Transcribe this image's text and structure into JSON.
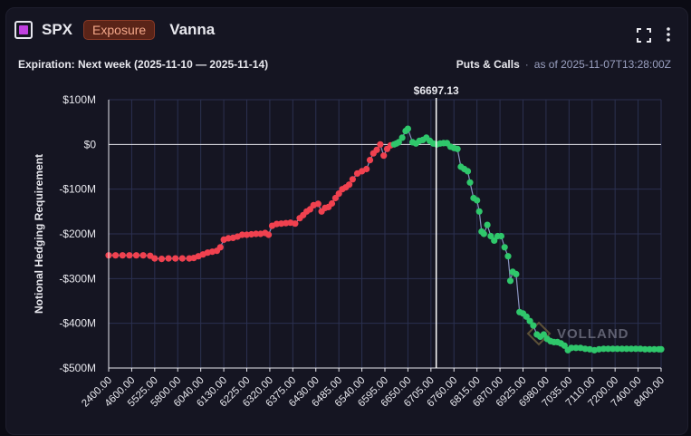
{
  "header": {
    "ticker": "SPX",
    "badge": "Exposure",
    "greek": "Vanna",
    "icon_color": "#c040e0"
  },
  "subheader": {
    "expiration": "Expiration: Next week (2025-11-10 — 2025-11-14)",
    "mode": "Puts & Calls",
    "separator": "·",
    "as_of": "as of 2025-11-07T13:28:00Z"
  },
  "watermark": "VOLLAND",
  "chart_data": {
    "type": "scatter",
    "ylabel": "Notional Hedging Requirement",
    "xlabel": "",
    "spot_label": "$6697.13",
    "y_ticks": [
      100,
      0,
      -100,
      -200,
      -300,
      -400,
      -500
    ],
    "y_tick_labels": [
      "$100M",
      "$0",
      "-$100M",
      "-$200M",
      "-$300M",
      "-$400M",
      "-$500M"
    ],
    "ylim": [
      -500,
      100
    ],
    "x_tick_labels": [
      "2400.00",
      "4600.00",
      "5525.00",
      "5800.00",
      "6040.00",
      "6130.00",
      "6225.00",
      "6320.00",
      "6375.00",
      "6430.00",
      "6485.00",
      "6540.00",
      "6595.00",
      "6650.00",
      "6705.00",
      "6760.00",
      "6815.00",
      "6870.00",
      "6925.00",
      "6980.00",
      "7035.00",
      "7110.00",
      "7200.00",
      "7400.00",
      "8400.00"
    ],
    "colors": {
      "negative": "#f0414f",
      "positive": "#2fc76b",
      "line": "#8a93c0",
      "grid": "#2b3050",
      "zero": "#e8e8ee",
      "spot": "#ffffff"
    },
    "points": [
      [
        0,
        -248
      ],
      [
        0.3,
        -248
      ],
      [
        0.6,
        -248
      ],
      [
        0.9,
        -248
      ],
      [
        1.2,
        -248
      ],
      [
        1.5,
        -248
      ],
      [
        1.8,
        -249
      ],
      [
        2.0,
        -255
      ],
      [
        2.3,
        -256
      ],
      [
        2.6,
        -255
      ],
      [
        2.9,
        -255
      ],
      [
        3.2,
        -255
      ],
      [
        3.5,
        -255
      ],
      [
        3.7,
        -254
      ],
      [
        3.9,
        -250
      ],
      [
        4.1,
        -246
      ],
      [
        4.3,
        -242
      ],
      [
        4.5,
        -240
      ],
      [
        4.7,
        -238
      ],
      [
        4.85,
        -230
      ],
      [
        5.0,
        -213
      ],
      [
        5.2,
        -210
      ],
      [
        5.4,
        -209
      ],
      [
        5.6,
        -206
      ],
      [
        5.8,
        -202
      ],
      [
        6.0,
        -202
      ],
      [
        6.2,
        -201
      ],
      [
        6.4,
        -200
      ],
      [
        6.6,
        -200
      ],
      [
        6.8,
        -198
      ],
      [
        6.95,
        -202
      ],
      [
        7.1,
        -182
      ],
      [
        7.3,
        -178
      ],
      [
        7.5,
        -177
      ],
      [
        7.7,
        -176
      ],
      [
        7.9,
        -175
      ],
      [
        8.1,
        -177
      ],
      [
        8.3,
        -165
      ],
      [
        8.45,
        -158
      ],
      [
        8.6,
        -150
      ],
      [
        8.75,
        -145
      ],
      [
        8.9,
        -136
      ],
      [
        9.1,
        -133
      ],
      [
        9.25,
        -150
      ],
      [
        9.4,
        -142
      ],
      [
        9.55,
        -140
      ],
      [
        9.7,
        -132
      ],
      [
        9.85,
        -120
      ],
      [
        10.0,
        -110
      ],
      [
        10.15,
        -100
      ],
      [
        10.3,
        -96
      ],
      [
        10.45,
        -90
      ],
      [
        10.6,
        -78
      ],
      [
        10.8,
        -65
      ],
      [
        11.0,
        -60
      ],
      [
        11.2,
        -55
      ],
      [
        11.35,
        -35
      ],
      [
        11.5,
        -20
      ],
      [
        11.65,
        -12
      ],
      [
        11.8,
        0
      ],
      [
        11.95,
        -25
      ],
      [
        12.1,
        -10
      ],
      [
        12.25,
        -2
      ],
      [
        12.4,
        0
      ],
      [
        12.5,
        2
      ],
      [
        12.6,
        5
      ],
      [
        12.75,
        15
      ],
      [
        12.9,
        30
      ],
      [
        13.0,
        35
      ],
      [
        13.2,
        5
      ],
      [
        13.35,
        2
      ],
      [
        13.5,
        8
      ],
      [
        13.65,
        10
      ],
      [
        13.8,
        15
      ],
      [
        13.95,
        8
      ],
      [
        14.1,
        2
      ],
      [
        14.25,
        0
      ],
      [
        14.4,
        2
      ],
      [
        14.55,
        3
      ],
      [
        14.7,
        3
      ],
      [
        14.85,
        -5
      ],
      [
        15.0,
        -8
      ],
      [
        15.15,
        -10
      ],
      [
        15.3,
        -50
      ],
      [
        15.45,
        -55
      ],
      [
        15.6,
        -60
      ],
      [
        15.7,
        -85
      ],
      [
        15.85,
        -120
      ],
      [
        16.0,
        -125
      ],
      [
        16.1,
        -150
      ],
      [
        16.2,
        -195
      ],
      [
        16.3,
        -200
      ],
      [
        16.45,
        -180
      ],
      [
        16.6,
        -205
      ],
      [
        16.75,
        -215
      ],
      [
        16.9,
        -205
      ],
      [
        17.05,
        -205
      ],
      [
        17.2,
        -230
      ],
      [
        17.35,
        -250
      ],
      [
        17.45,
        -305
      ],
      [
        17.55,
        -285
      ],
      [
        17.7,
        -290
      ],
      [
        17.85,
        -375
      ],
      [
        18.0,
        -378
      ],
      [
        18.15,
        -385
      ],
      [
        18.3,
        -395
      ],
      [
        18.45,
        -405
      ],
      [
        18.6,
        -425
      ],
      [
        18.75,
        -430
      ],
      [
        18.9,
        -425
      ],
      [
        19.05,
        -435
      ],
      [
        19.2,
        -440
      ],
      [
        19.35,
        -442
      ],
      [
        19.5,
        -442
      ],
      [
        19.65,
        -445
      ],
      [
        19.8,
        -450
      ],
      [
        19.95,
        -460
      ],
      [
        20.1,
        -455
      ],
      [
        20.3,
        -455
      ],
      [
        20.5,
        -455
      ],
      [
        20.7,
        -457
      ],
      [
        20.9,
        -458
      ],
      [
        21.1,
        -460
      ],
      [
        21.3,
        -458
      ],
      [
        21.5,
        -457
      ],
      [
        21.7,
        -457
      ],
      [
        21.9,
        -457
      ],
      [
        22.1,
        -457
      ],
      [
        22.3,
        -457
      ],
      [
        22.5,
        -457
      ],
      [
        22.7,
        -457
      ],
      [
        22.9,
        -457
      ],
      [
        23.1,
        -457
      ],
      [
        23.3,
        -458
      ],
      [
        23.5,
        -458
      ],
      [
        23.7,
        -458
      ],
      [
        23.9,
        -458
      ],
      [
        24.0,
        -458
      ]
    ]
  }
}
